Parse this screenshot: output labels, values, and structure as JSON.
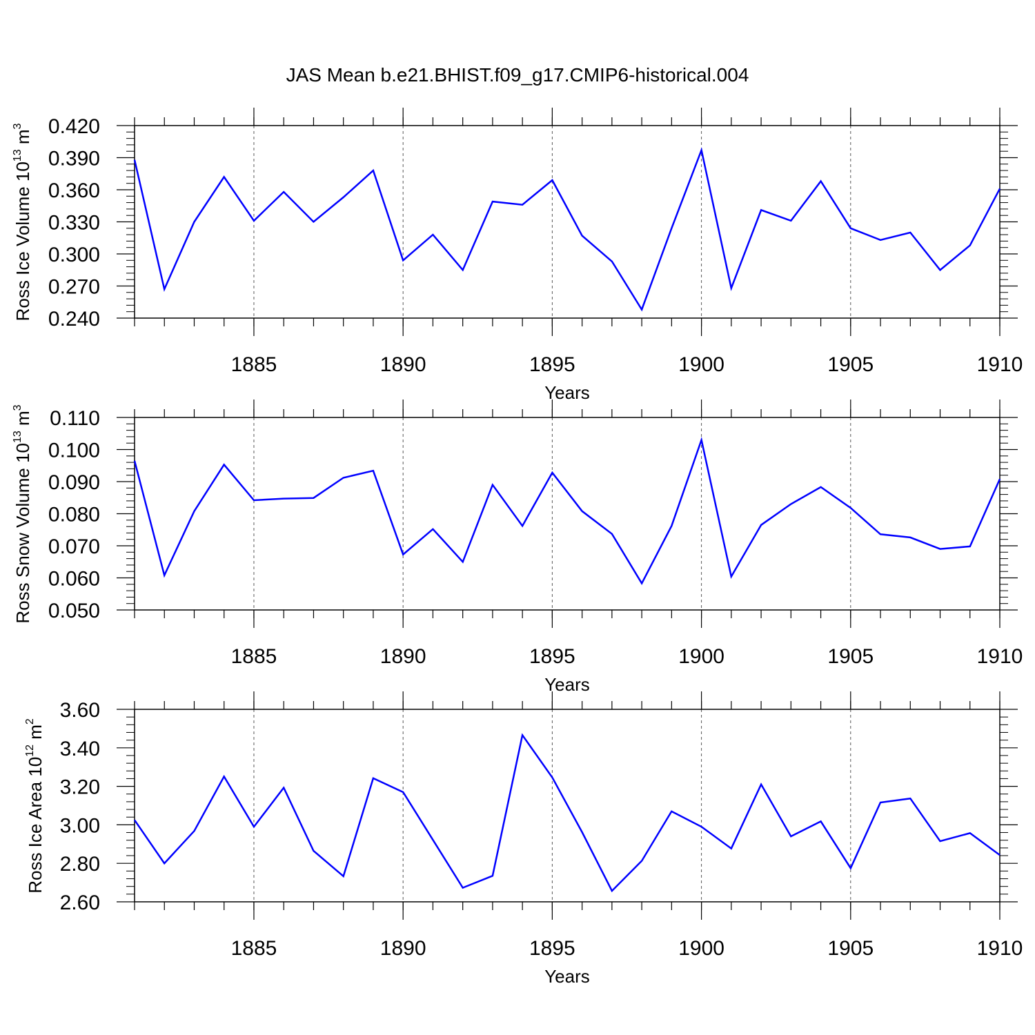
{
  "title": "JAS Mean b.e21.BHIST.f09_g17.CMIP6-historical.004",
  "colors": {
    "line": "#0000ff",
    "axis": "#000000",
    "grid": "#555555"
  },
  "chart_data": [
    {
      "type": "line",
      "ylabel": {
        "text": "Ross Ice Volume 10",
        "exp": "13",
        "unit": " m",
        "unit_exp": "3"
      },
      "xlabel": "Years",
      "xlim": [
        1881,
        1910
      ],
      "ylim": [
        0.24,
        0.42
      ],
      "yticks": [
        0.24,
        0.27,
        0.3,
        0.33,
        0.36,
        0.39,
        0.42
      ],
      "ytick_labels": [
        "0.240",
        "0.270",
        "0.300",
        "0.330",
        "0.360",
        "0.390",
        "0.420"
      ],
      "xticks": [
        1885,
        1890,
        1895,
        1900,
        1905,
        1910
      ],
      "xtick_labels": [
        "1885",
        "1890",
        "1895",
        "1900",
        "1905",
        "1910"
      ],
      "x": [
        1881,
        1882,
        1883,
        1884,
        1885,
        1886,
        1887,
        1888,
        1889,
        1890,
        1891,
        1892,
        1893,
        1894,
        1895,
        1896,
        1897,
        1898,
        1899,
        1900,
        1901,
        1902,
        1903,
        1904,
        1905,
        1906,
        1907,
        1908,
        1909,
        1910
      ],
      "values": [
        0.388,
        0.267,
        0.33,
        0.372,
        0.331,
        0.358,
        0.33,
        0.353,
        0.378,
        0.294,
        0.318,
        0.285,
        0.349,
        0.346,
        0.369,
        0.317,
        0.293,
        0.248,
        0.324,
        0.397,
        0.268,
        0.341,
        0.331,
        0.368,
        0.324,
        0.313,
        0.32,
        0.285,
        0.308,
        0.361
      ]
    },
    {
      "type": "line",
      "ylabel": {
        "text": "Ross Snow Volume 10",
        "exp": "13",
        "unit": " m",
        "unit_exp": "3"
      },
      "xlabel": "Years",
      "xlim": [
        1881,
        1910
      ],
      "ylim": [
        0.05,
        0.11
      ],
      "yticks": [
        0.05,
        0.06,
        0.07,
        0.08,
        0.09,
        0.1,
        0.11
      ],
      "ytick_labels": [
        "0.050",
        "0.060",
        "0.070",
        "0.080",
        "0.090",
        "0.100",
        "0.110"
      ],
      "xticks": [
        1885,
        1890,
        1895,
        1900,
        1905,
        1910
      ],
      "xtick_labels": [
        "1885",
        "1890",
        "1895",
        "1900",
        "1905",
        "1910"
      ],
      "x": [
        1881,
        1882,
        1883,
        1884,
        1885,
        1886,
        1887,
        1888,
        1889,
        1890,
        1891,
        1892,
        1893,
        1894,
        1895,
        1896,
        1897,
        1898,
        1899,
        1900,
        1901,
        1902,
        1903,
        1904,
        1905,
        1906,
        1907,
        1908,
        1909,
        1910
      ],
      "values": [
        0.0965,
        0.0608,
        0.0808,
        0.0953,
        0.0842,
        0.0847,
        0.0849,
        0.0912,
        0.0934,
        0.0673,
        0.0752,
        0.065,
        0.089,
        0.0762,
        0.0928,
        0.0808,
        0.0737,
        0.0583,
        0.0762,
        0.103,
        0.0604,
        0.0765,
        0.083,
        0.0883,
        0.0818,
        0.0736,
        0.0726,
        0.069,
        0.0698,
        0.0908
      ]
    },
    {
      "type": "line",
      "ylabel": {
        "text": "Ross Ice Area 10",
        "exp": "12",
        "unit": " m",
        "unit_exp": "2"
      },
      "xlabel": "Years",
      "xlim": [
        1881,
        1910
      ],
      "ylim": [
        2.6,
        3.6
      ],
      "yticks": [
        2.6,
        2.8,
        3.0,
        3.2,
        3.4,
        3.6
      ],
      "ytick_labels": [
        "2.60",
        "2.80",
        "3.00",
        "3.20",
        "3.40",
        "3.60"
      ],
      "xticks": [
        1885,
        1890,
        1895,
        1900,
        1905,
        1910
      ],
      "xtick_labels": [
        "1885",
        "1890",
        "1895",
        "1900",
        "1905",
        "1910"
      ],
      "x": [
        1881,
        1882,
        1883,
        1884,
        1885,
        1886,
        1887,
        1888,
        1889,
        1890,
        1891,
        1892,
        1893,
        1894,
        1895,
        1896,
        1897,
        1898,
        1899,
        1900,
        1901,
        1902,
        1903,
        1904,
        1905,
        1906,
        1907,
        1908,
        1909,
        1910
      ],
      "values": [
        3.025,
        2.8,
        2.968,
        3.251,
        2.99,
        3.193,
        2.865,
        2.733,
        3.242,
        3.17,
        2.922,
        2.673,
        2.735,
        3.466,
        3.246,
        2.962,
        2.657,
        2.813,
        3.07,
        2.99,
        2.877,
        3.21,
        2.94,
        3.018,
        2.775,
        3.116,
        3.137,
        2.915,
        2.957,
        2.843
      ]
    }
  ]
}
